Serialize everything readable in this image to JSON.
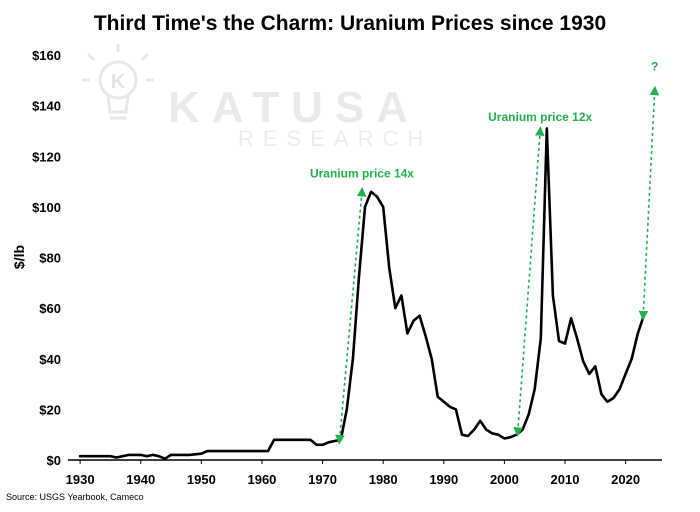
{
  "chart_data": {
    "type": "line",
    "title": "Third Time's the Charm: Uranium Prices since 1930",
    "ylabel": "$/lb",
    "xlabel": "",
    "xlim": [
      1928,
      2026
    ],
    "ylim": [
      0,
      160
    ],
    "x_ticks": [
      1930,
      1940,
      1950,
      1960,
      1970,
      1980,
      1990,
      2000,
      2010,
      2020
    ],
    "y_ticks": [
      0,
      20,
      40,
      60,
      80,
      100,
      120,
      140,
      160
    ],
    "y_tick_labels": [
      "$0",
      "$20",
      "$40",
      "$60",
      "$80",
      "$100",
      "$120",
      "$140",
      "$160"
    ],
    "grid": false,
    "legend": "none",
    "series": [
      {
        "color": "#000000",
        "x": [
          1930,
          1935,
          1936,
          1937,
          1938,
          1940,
          1941,
          1942,
          1943,
          1944,
          1945,
          1948,
          1950,
          1951,
          1960,
          1961,
          1962,
          1968,
          1969,
          1970,
          1971,
          1972,
          1973,
          1974,
          1975,
          1976,
          1977,
          1978,
          1979,
          1980,
          1981,
          1982,
          1983,
          1984,
          1985,
          1986,
          1987,
          1988,
          1989,
          1990,
          1991,
          1992,
          1993,
          1994,
          1995,
          1996,
          1997,
          1998,
          1999,
          2000,
          2001,
          2002,
          2003,
          2004,
          2005,
          2006,
          2007,
          2008,
          2009,
          2010,
          2011,
          2012,
          2013,
          2014,
          2015,
          2016,
          2017,
          2018,
          2019,
          2020,
          2021,
          2022,
          2023
        ],
        "y": [
          1.5,
          1.5,
          1,
          1.5,
          2,
          2,
          1.5,
          2,
          1.5,
          0.5,
          2,
          2,
          2.5,
          3.5,
          3.5,
          3.5,
          8,
          8,
          6,
          6,
          7,
          7.5,
          8,
          20,
          40,
          72,
          100,
          106,
          104,
          100,
          76,
          60,
          65,
          50,
          55,
          57,
          49,
          40,
          25,
          23,
          21,
          20,
          10,
          9.5,
          12,
          15.5,
          12,
          10.5,
          10,
          8.5,
          9,
          10,
          12,
          18,
          28,
          48,
          131,
          65,
          47,
          46,
          56,
          48,
          39,
          34,
          37,
          26,
          23,
          24.5,
          28,
          34,
          40,
          50,
          57
        ]
      }
    ],
    "annotations": [
      {
        "text": "Uranium price 14x",
        "color": "#22b14c",
        "from": [
          1972.8,
          8
        ],
        "to": [
          1976.5,
          106
        ]
      },
      {
        "text": "Uranium price 12x",
        "color": "#22b14c",
        "from": [
          2002.2,
          11
        ],
        "to": [
          2005.9,
          130
        ]
      },
      {
        "text": "?",
        "color": "#22b14c",
        "from": [
          2022.9,
          57
        ],
        "to": [
          2024.8,
          146
        ]
      }
    ],
    "source": "Source: USGS Yearbook, Cameco"
  },
  "watermark": {
    "brand": "KATUSA",
    "sub": "RESEARCH",
    "logo_letter": "K",
    "logo_icon": "lightbulb-icon"
  }
}
